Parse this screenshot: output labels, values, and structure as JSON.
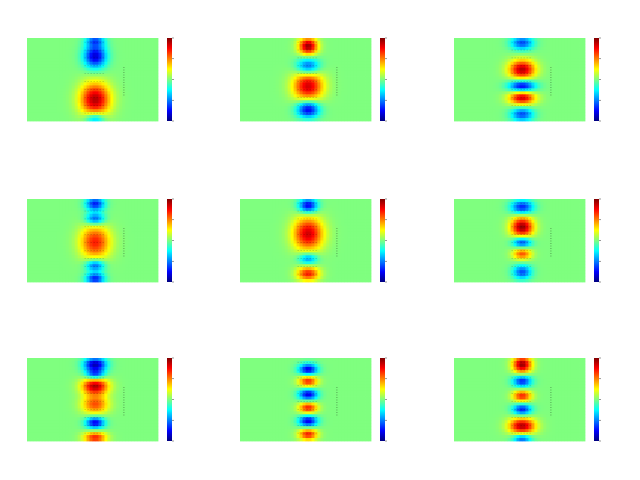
{
  "figure": {
    "background": "#ffffff"
  },
  "colormap": {
    "name": "jet",
    "stops": [
      "#00007f",
      "#0000ff",
      "#007fff",
      "#00ffff",
      "#7fff7f",
      "#ffff00",
      "#ff7f00",
      "#ff0000",
      "#7f0000"
    ]
  },
  "chart_data": [
    {
      "type": "heatmap",
      "panel": 1,
      "background_level": 0.5,
      "features": [
        {
          "level": 0.08,
          "u": 0.52,
          "v": 0.22,
          "su": 0.06,
          "sv": 0.1
        },
        {
          "level": 0.95,
          "u": 0.52,
          "v": 0.74,
          "su": 0.08,
          "sv": 0.14
        },
        {
          "level": 0.25,
          "u": 0.52,
          "v": 0.03,
          "su": 0.05,
          "sv": 0.05
        },
        {
          "level": 0.25,
          "u": 0.52,
          "v": 0.97,
          "su": 0.05,
          "sv": 0.05
        }
      ]
    },
    {
      "type": "heatmap",
      "panel": 2,
      "background_level": 0.5,
      "features": [
        {
          "level": 0.98,
          "u": 0.52,
          "v": 0.1,
          "su": 0.05,
          "sv": 0.07
        },
        {
          "level": 0.2,
          "u": 0.52,
          "v": 0.34,
          "su": 0.06,
          "sv": 0.07
        },
        {
          "level": 0.92,
          "u": 0.52,
          "v": 0.58,
          "su": 0.08,
          "sv": 0.12
        },
        {
          "level": 0.1,
          "u": 0.52,
          "v": 0.86,
          "su": 0.06,
          "sv": 0.07
        }
      ]
    },
    {
      "type": "heatmap",
      "panel": 3,
      "background_level": 0.5,
      "features": [
        {
          "level": 0.2,
          "u": 0.52,
          "v": 0.06,
          "su": 0.06,
          "sv": 0.06
        },
        {
          "level": 0.95,
          "u": 0.52,
          "v": 0.38,
          "su": 0.07,
          "sv": 0.08
        },
        {
          "level": 0.08,
          "u": 0.52,
          "v": 0.58,
          "su": 0.07,
          "sv": 0.05
        },
        {
          "level": 0.92,
          "u": 0.52,
          "v": 0.72,
          "su": 0.07,
          "sv": 0.06
        },
        {
          "level": 0.2,
          "u": 0.52,
          "v": 0.92,
          "su": 0.06,
          "sv": 0.06
        }
      ]
    },
    {
      "type": "heatmap",
      "panel": 4,
      "background_level": 0.5,
      "features": [
        {
          "level": 0.15,
          "u": 0.52,
          "v": 0.06,
          "su": 0.05,
          "sv": 0.06
        },
        {
          "level": 0.2,
          "u": 0.52,
          "v": 0.24,
          "su": 0.05,
          "sv": 0.05
        },
        {
          "level": 0.85,
          "u": 0.52,
          "v": 0.52,
          "su": 0.08,
          "sv": 0.14
        },
        {
          "level": 0.2,
          "u": 0.52,
          "v": 0.8,
          "su": 0.05,
          "sv": 0.05
        },
        {
          "level": 0.15,
          "u": 0.52,
          "v": 0.96,
          "su": 0.05,
          "sv": 0.05
        }
      ]
    },
    {
      "type": "heatmap",
      "panel": 5,
      "background_level": 0.5,
      "features": [
        {
          "level": 0.1,
          "u": 0.52,
          "v": 0.08,
          "su": 0.05,
          "sv": 0.06
        },
        {
          "level": 0.92,
          "u": 0.52,
          "v": 0.42,
          "su": 0.08,
          "sv": 0.14
        },
        {
          "level": 0.25,
          "u": 0.52,
          "v": 0.72,
          "su": 0.05,
          "sv": 0.05
        },
        {
          "level": 0.85,
          "u": 0.52,
          "v": 0.9,
          "su": 0.06,
          "sv": 0.06
        }
      ]
    },
    {
      "type": "heatmap",
      "panel": 6,
      "background_level": 0.5,
      "features": [
        {
          "level": 0.15,
          "u": 0.52,
          "v": 0.1,
          "su": 0.06,
          "sv": 0.06
        },
        {
          "level": 0.98,
          "u": 0.52,
          "v": 0.34,
          "su": 0.06,
          "sv": 0.09
        },
        {
          "level": 0.15,
          "u": 0.52,
          "v": 0.52,
          "su": 0.05,
          "sv": 0.05
        },
        {
          "level": 0.8,
          "u": 0.52,
          "v": 0.66,
          "su": 0.05,
          "sv": 0.05
        },
        {
          "level": 0.2,
          "u": 0.52,
          "v": 0.88,
          "su": 0.05,
          "sv": 0.06
        }
      ]
    },
    {
      "type": "heatmap",
      "panel": 7,
      "background_level": 0.5,
      "features": [
        {
          "level": 0.05,
          "u": 0.52,
          "v": 0.08,
          "su": 0.06,
          "sv": 0.06
        },
        {
          "level": 0.2,
          "u": 0.52,
          "v": 0.2,
          "su": 0.05,
          "sv": 0.04
        },
        {
          "level": 0.95,
          "u": 0.52,
          "v": 0.34,
          "su": 0.07,
          "sv": 0.07
        },
        {
          "level": 0.8,
          "u": 0.52,
          "v": 0.56,
          "su": 0.07,
          "sv": 0.08
        },
        {
          "level": 0.1,
          "u": 0.52,
          "v": 0.78,
          "su": 0.05,
          "sv": 0.05
        },
        {
          "level": 0.85,
          "u": 0.52,
          "v": 0.96,
          "su": 0.06,
          "sv": 0.05
        }
      ]
    },
    {
      "type": "heatmap",
      "panel": 8,
      "background_level": 0.5,
      "features": [
        {
          "level": 0.1,
          "u": 0.52,
          "v": 0.14,
          "su": 0.05,
          "sv": 0.05
        },
        {
          "level": 0.85,
          "u": 0.52,
          "v": 0.28,
          "su": 0.05,
          "sv": 0.05
        },
        {
          "level": 0.1,
          "u": 0.52,
          "v": 0.44,
          "su": 0.05,
          "sv": 0.05
        },
        {
          "level": 0.85,
          "u": 0.52,
          "v": 0.6,
          "su": 0.05,
          "sv": 0.05
        },
        {
          "level": 0.1,
          "u": 0.52,
          "v": 0.76,
          "su": 0.05,
          "sv": 0.05
        },
        {
          "level": 0.85,
          "u": 0.52,
          "v": 0.92,
          "su": 0.05,
          "sv": 0.05
        }
      ]
    },
    {
      "type": "heatmap",
      "panel": 9,
      "background_level": 0.5,
      "features": [
        {
          "level": 0.98,
          "u": 0.52,
          "v": 0.08,
          "su": 0.05,
          "sv": 0.07
        },
        {
          "level": 0.15,
          "u": 0.52,
          "v": 0.28,
          "su": 0.05,
          "sv": 0.05
        },
        {
          "level": 0.85,
          "u": 0.52,
          "v": 0.46,
          "su": 0.05,
          "sv": 0.05
        },
        {
          "level": 0.15,
          "u": 0.52,
          "v": 0.62,
          "su": 0.05,
          "sv": 0.05
        },
        {
          "level": 0.95,
          "u": 0.52,
          "v": 0.82,
          "su": 0.07,
          "sv": 0.07
        },
        {
          "level": 0.2,
          "u": 0.52,
          "v": 0.97,
          "su": 0.05,
          "sv": 0.04
        }
      ]
    }
  ]
}
